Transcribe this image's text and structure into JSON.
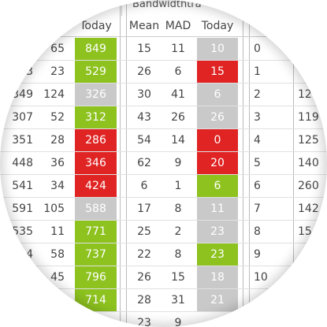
{
  "group_header": "Bandwidthtra",
  "headers": [
    "Today",
    "Mean",
    "MAD",
    "Today"
  ],
  "rows": [
    [
      null,
      "65",
      "849",
      "15",
      "11",
      "10",
      "0",
      null
    ],
    [
      "3",
      "23",
      "529",
      "26",
      "6",
      "15",
      "1",
      null
    ],
    [
      "349",
      "124",
      "326",
      "30",
      "41",
      "6",
      "2",
      "12"
    ],
    [
      "307",
      "52",
      "312",
      "43",
      "26",
      "26",
      "3",
      "119"
    ],
    [
      "351",
      "28",
      "286",
      "54",
      "14",
      "0",
      "4",
      "125"
    ],
    [
      "448",
      "36",
      "346",
      "62",
      "9",
      "20",
      "5",
      "140"
    ],
    [
      "541",
      "34",
      "424",
      "6",
      "1",
      "6",
      "6",
      "260"
    ],
    [
      "591",
      "105",
      "588",
      "17",
      "8",
      "11",
      "7",
      "142"
    ],
    [
      "535",
      "11",
      "771",
      "25",
      "2",
      "23",
      "8",
      "15"
    ],
    [
      "4",
      "58",
      "737",
      "22",
      "8",
      "23",
      "9",
      null
    ],
    [
      null,
      "45",
      "796",
      "26",
      "15",
      "18",
      "10",
      null
    ],
    [
      null,
      null,
      "714",
      "28",
      "31",
      "21",
      null,
      null
    ],
    [
      null,
      null,
      null,
      "23",
      "9",
      null,
      null,
      null
    ]
  ],
  "left_today_status": [
    "#8dc21f",
    "#8dc21f",
    "#c9c9c9",
    "#8dc21f",
    "#e02424",
    "#e02424",
    "#e02424",
    "#c9c9c9",
    "#8dc21f",
    "#8dc21f",
    "#8dc21f",
    "#8dc21f",
    null
  ],
  "mid_today_status": [
    "#c9c9c9",
    "#e02424",
    "#c9c9c9",
    "#c9c9c9",
    "#e02424",
    "#e02424",
    "#8dc21f",
    "#c9c9c9",
    "#c9c9c9",
    "#8dc21f",
    "#c9c9c9",
    "#c9c9c9",
    null
  ]
}
